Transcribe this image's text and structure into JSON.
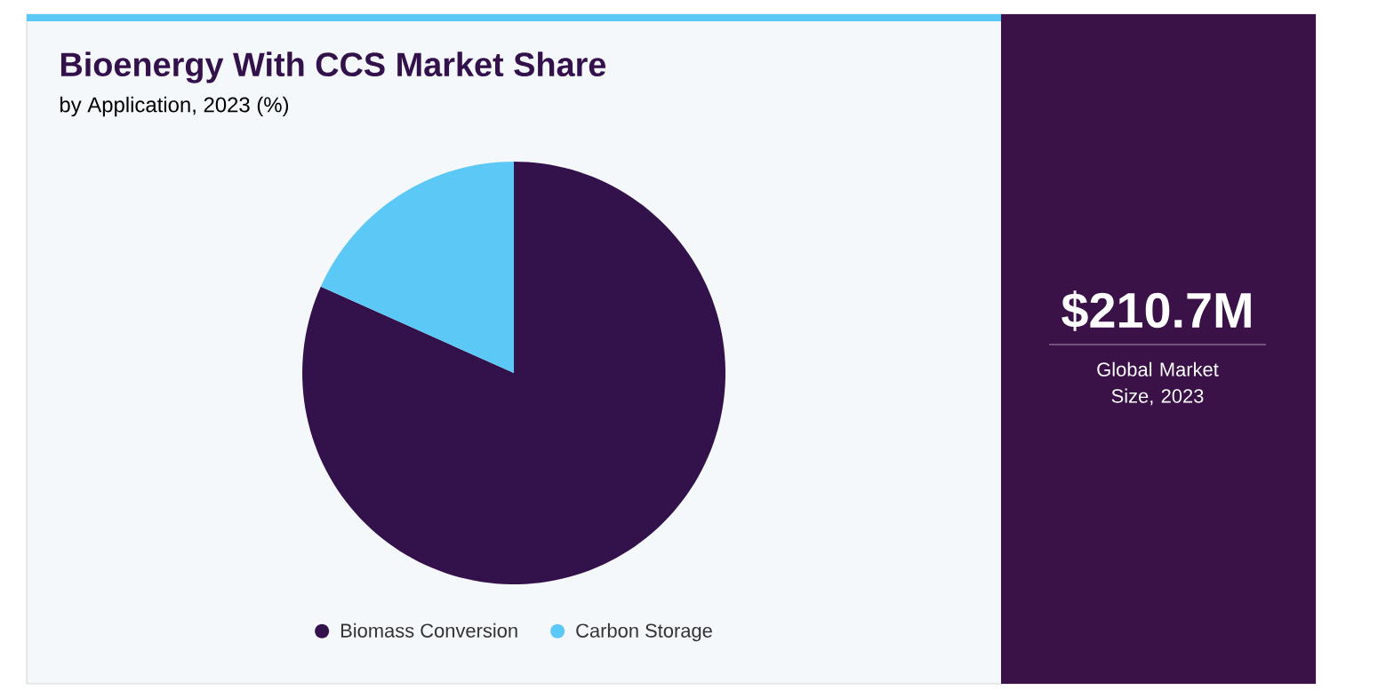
{
  "chart_data": {
    "type": "pie",
    "title": "Bioenergy With CCS Market Share",
    "subtitle": "by Application, 2023 (%)",
    "categories": [
      "Biomass Conversion",
      "Carbon Storage"
    ],
    "values": [
      81.7,
      18.3
    ],
    "colors": [
      "#33114a",
      "#5bc8f5"
    ],
    "legend": "bottom",
    "annotations": [
      "$210.7M",
      "Global Market Size, 2023"
    ]
  }
}
